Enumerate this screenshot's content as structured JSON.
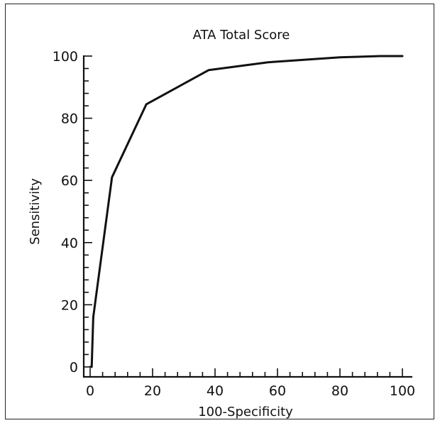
{
  "chart_data": {
    "type": "line",
    "title": "ATA Total Score",
    "xlabel": "100-Specificity",
    "ylabel": "Sensitivity",
    "xlim": [
      0,
      100
    ],
    "ylim": [
      0,
      100
    ],
    "x_major_ticks": [
      0,
      20,
      40,
      60,
      80,
      100
    ],
    "y_major_ticks": [
      0,
      20,
      40,
      60,
      80,
      100
    ],
    "x_minor_step": 4,
    "y_minor_step": 4,
    "grid": false,
    "legend": "none",
    "series": [
      {
        "x": [
          0,
          0.5,
          1,
          7,
          18,
          38,
          57,
          80,
          93,
          100
        ],
        "y": [
          0,
          0,
          16,
          61,
          84.5,
          95.5,
          98,
          99.6,
          100,
          100
        ]
      }
    ],
    "colors": {
      "line": "#111111",
      "axis": "#111111"
    }
  }
}
